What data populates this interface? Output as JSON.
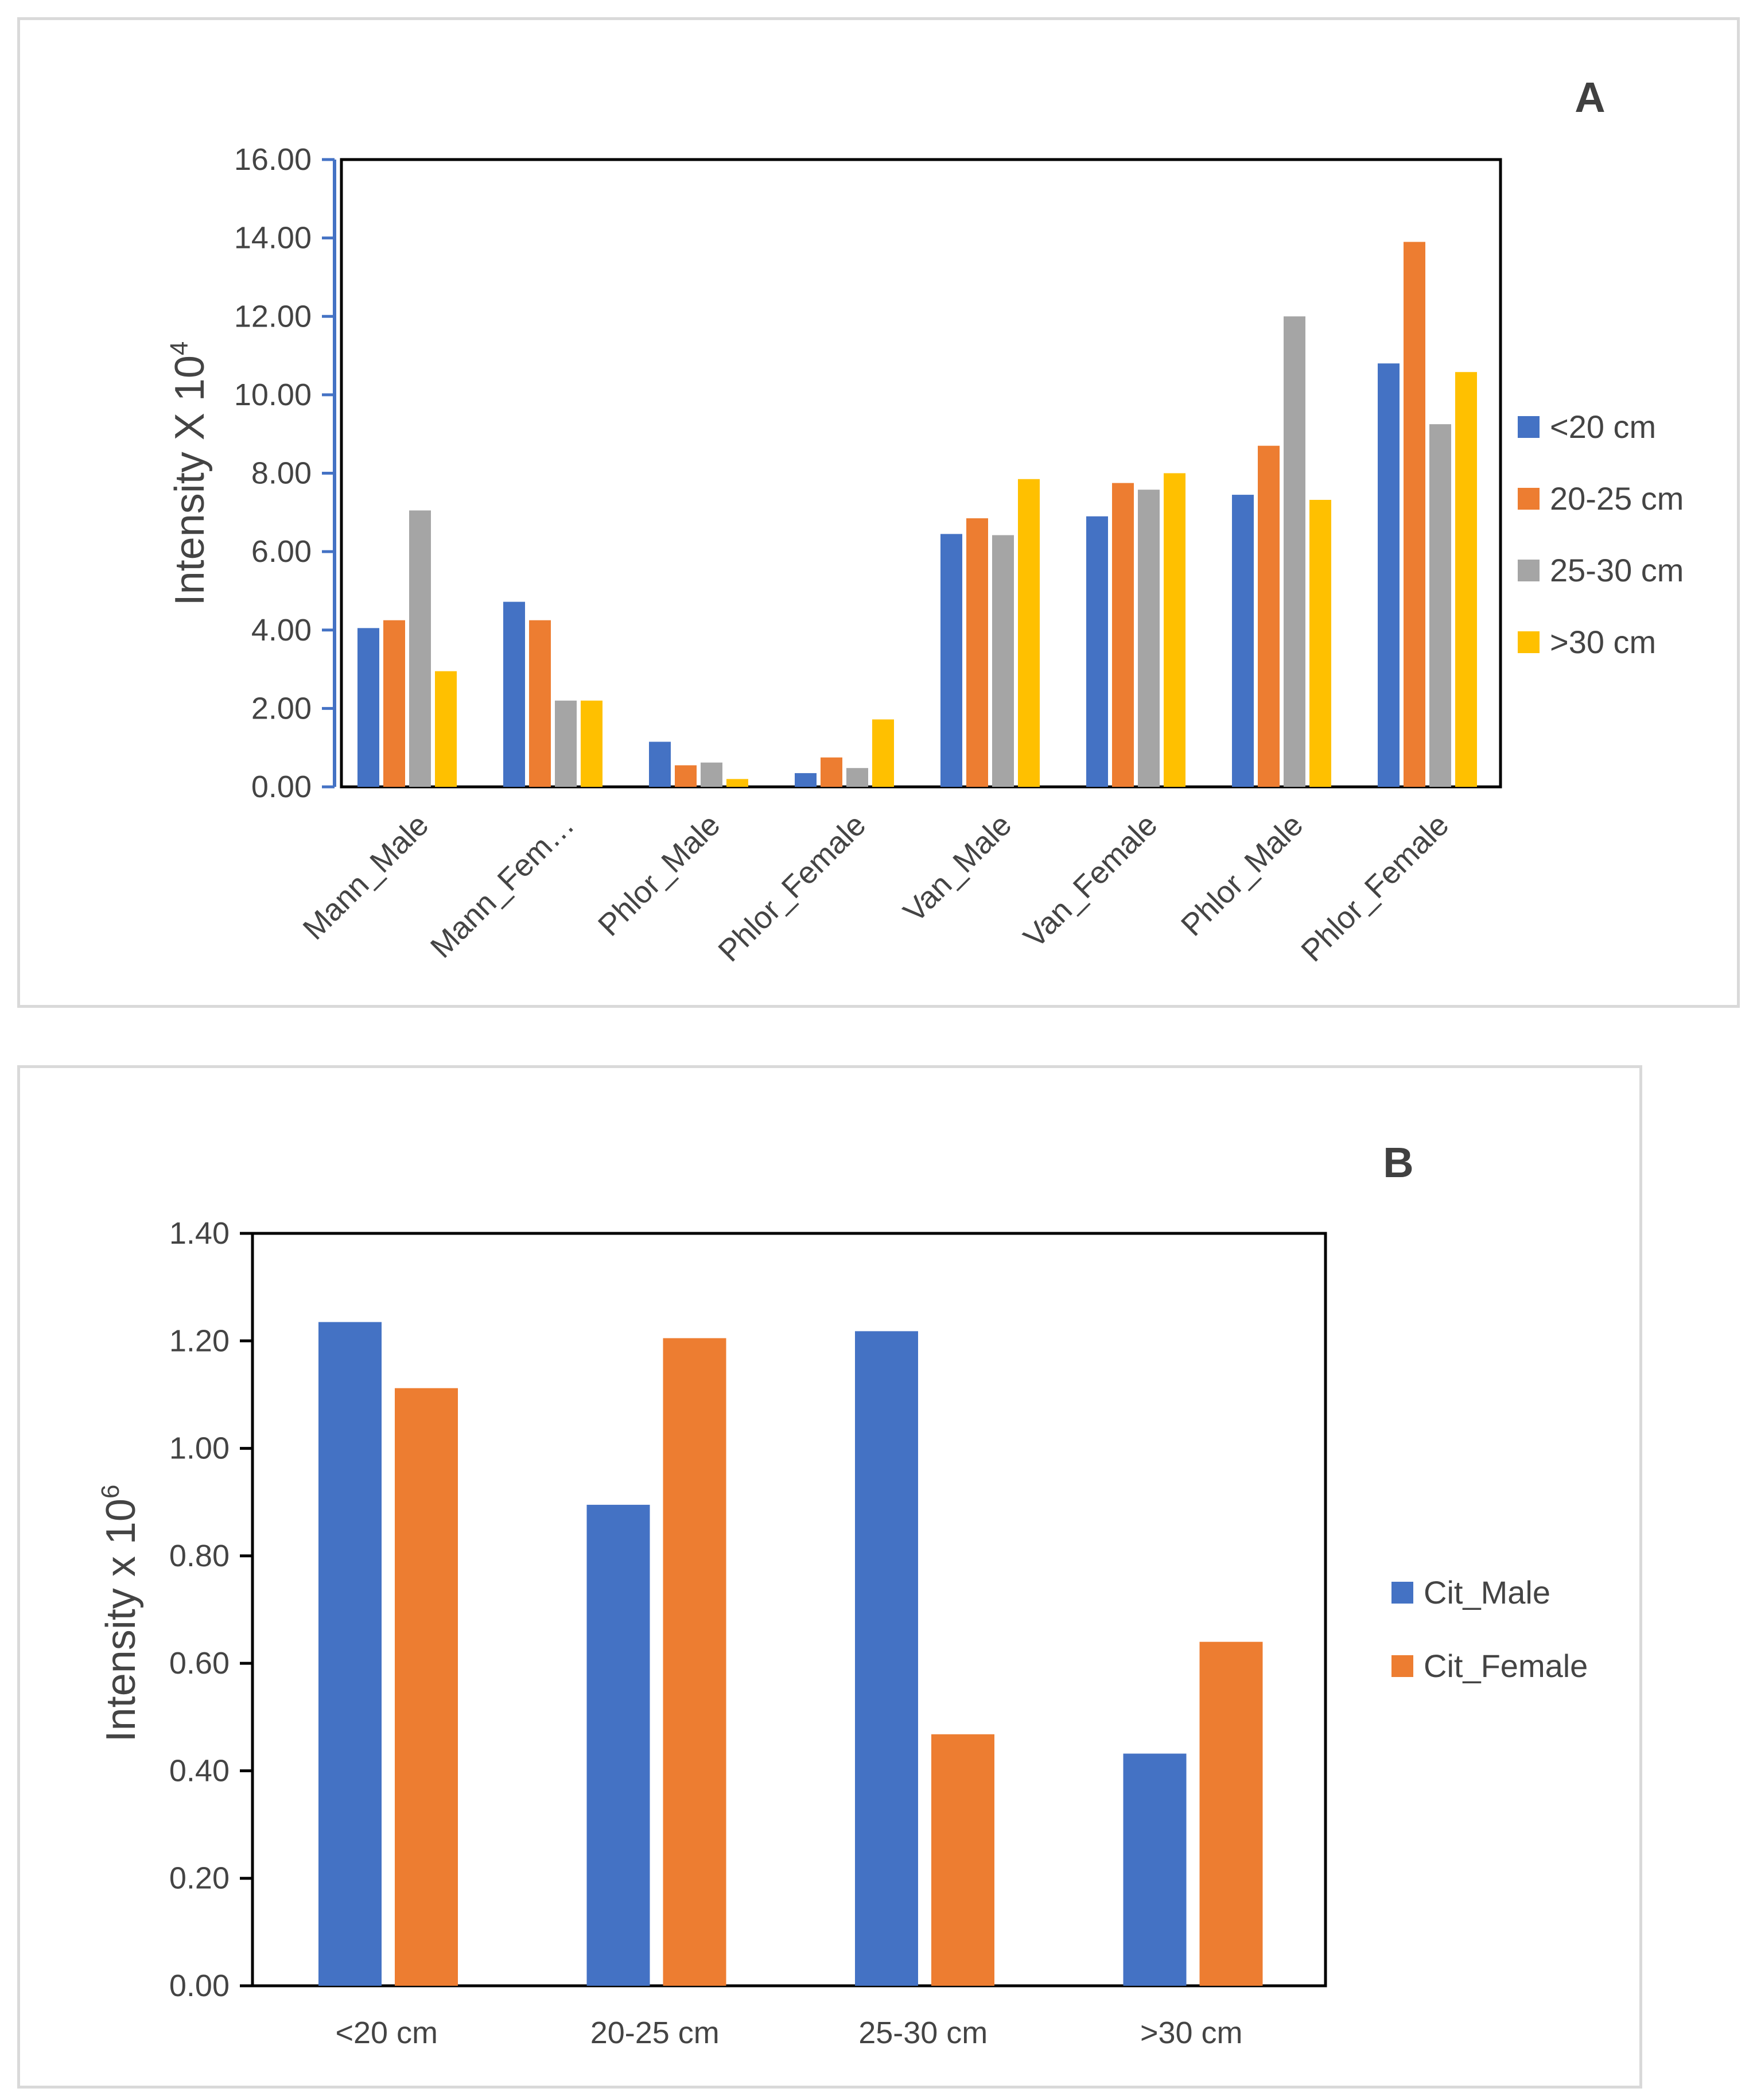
{
  "chart_data": [
    {
      "type": "bar",
      "panel_label": "A",
      "ylabel": "Intensity X 10",
      "ylabel_superscript": "4",
      "ylim": [
        0,
        16
      ],
      "ytick_step": 2,
      "ytick_labels": [
        "0.00",
        "2.00",
        "4.00",
        "6.00",
        "8.00",
        "10.00",
        "12.00",
        "14.00",
        "16.00"
      ],
      "categories": [
        "Mann_Male",
        "Mann_Fem…",
        "Phlor_Male",
        "Phlor_Female",
        "Van_Male",
        "Van_Female",
        "Phlor_Male",
        "Phlor_Female"
      ],
      "series": [
        {
          "name": "<20 cm",
          "color": "#4472c4",
          "values": [
            4.05,
            4.72,
            1.15,
            0.35,
            6.45,
            6.9,
            7.45,
            10.8
          ]
        },
        {
          "name": "20-25 cm",
          "color": "#ed7d31",
          "values": [
            4.25,
            4.25,
            0.55,
            0.75,
            6.85,
            7.75,
            8.7,
            13.9
          ]
        },
        {
          "name": "25-30 cm",
          "color": "#a5a5a5",
          "values": [
            7.05,
            2.2,
            0.62,
            0.48,
            6.42,
            7.58,
            12.0,
            9.25
          ]
        },
        {
          "name": ">30 cm",
          "color": "#ffc000",
          "values": [
            2.95,
            2.2,
            0.2,
            1.72,
            7.85,
            8.0,
            7.32,
            10.58
          ]
        }
      ],
      "legend_position": "right"
    },
    {
      "type": "bar",
      "panel_label": "B",
      "ylabel": "Intensity x 10",
      "ylabel_superscript": "6",
      "ylim": [
        0,
        1.4
      ],
      "ytick_step": 0.2,
      "ytick_labels": [
        "0.00",
        "0.20",
        "0.40",
        "0.60",
        "0.80",
        "1.00",
        "1.20",
        "1.40"
      ],
      "categories": [
        "<20 cm",
        "20-25 cm",
        "25-30 cm",
        ">30 cm"
      ],
      "series": [
        {
          "name": "Cit_Male",
          "color": "#4472c4",
          "values": [
            1.235,
            0.895,
            1.218,
            0.432
          ]
        },
        {
          "name": "Cit_Female",
          "color": "#ed7d31",
          "values": [
            1.112,
            1.205,
            0.468,
            0.64
          ]
        }
      ],
      "legend_position": "right"
    }
  ]
}
